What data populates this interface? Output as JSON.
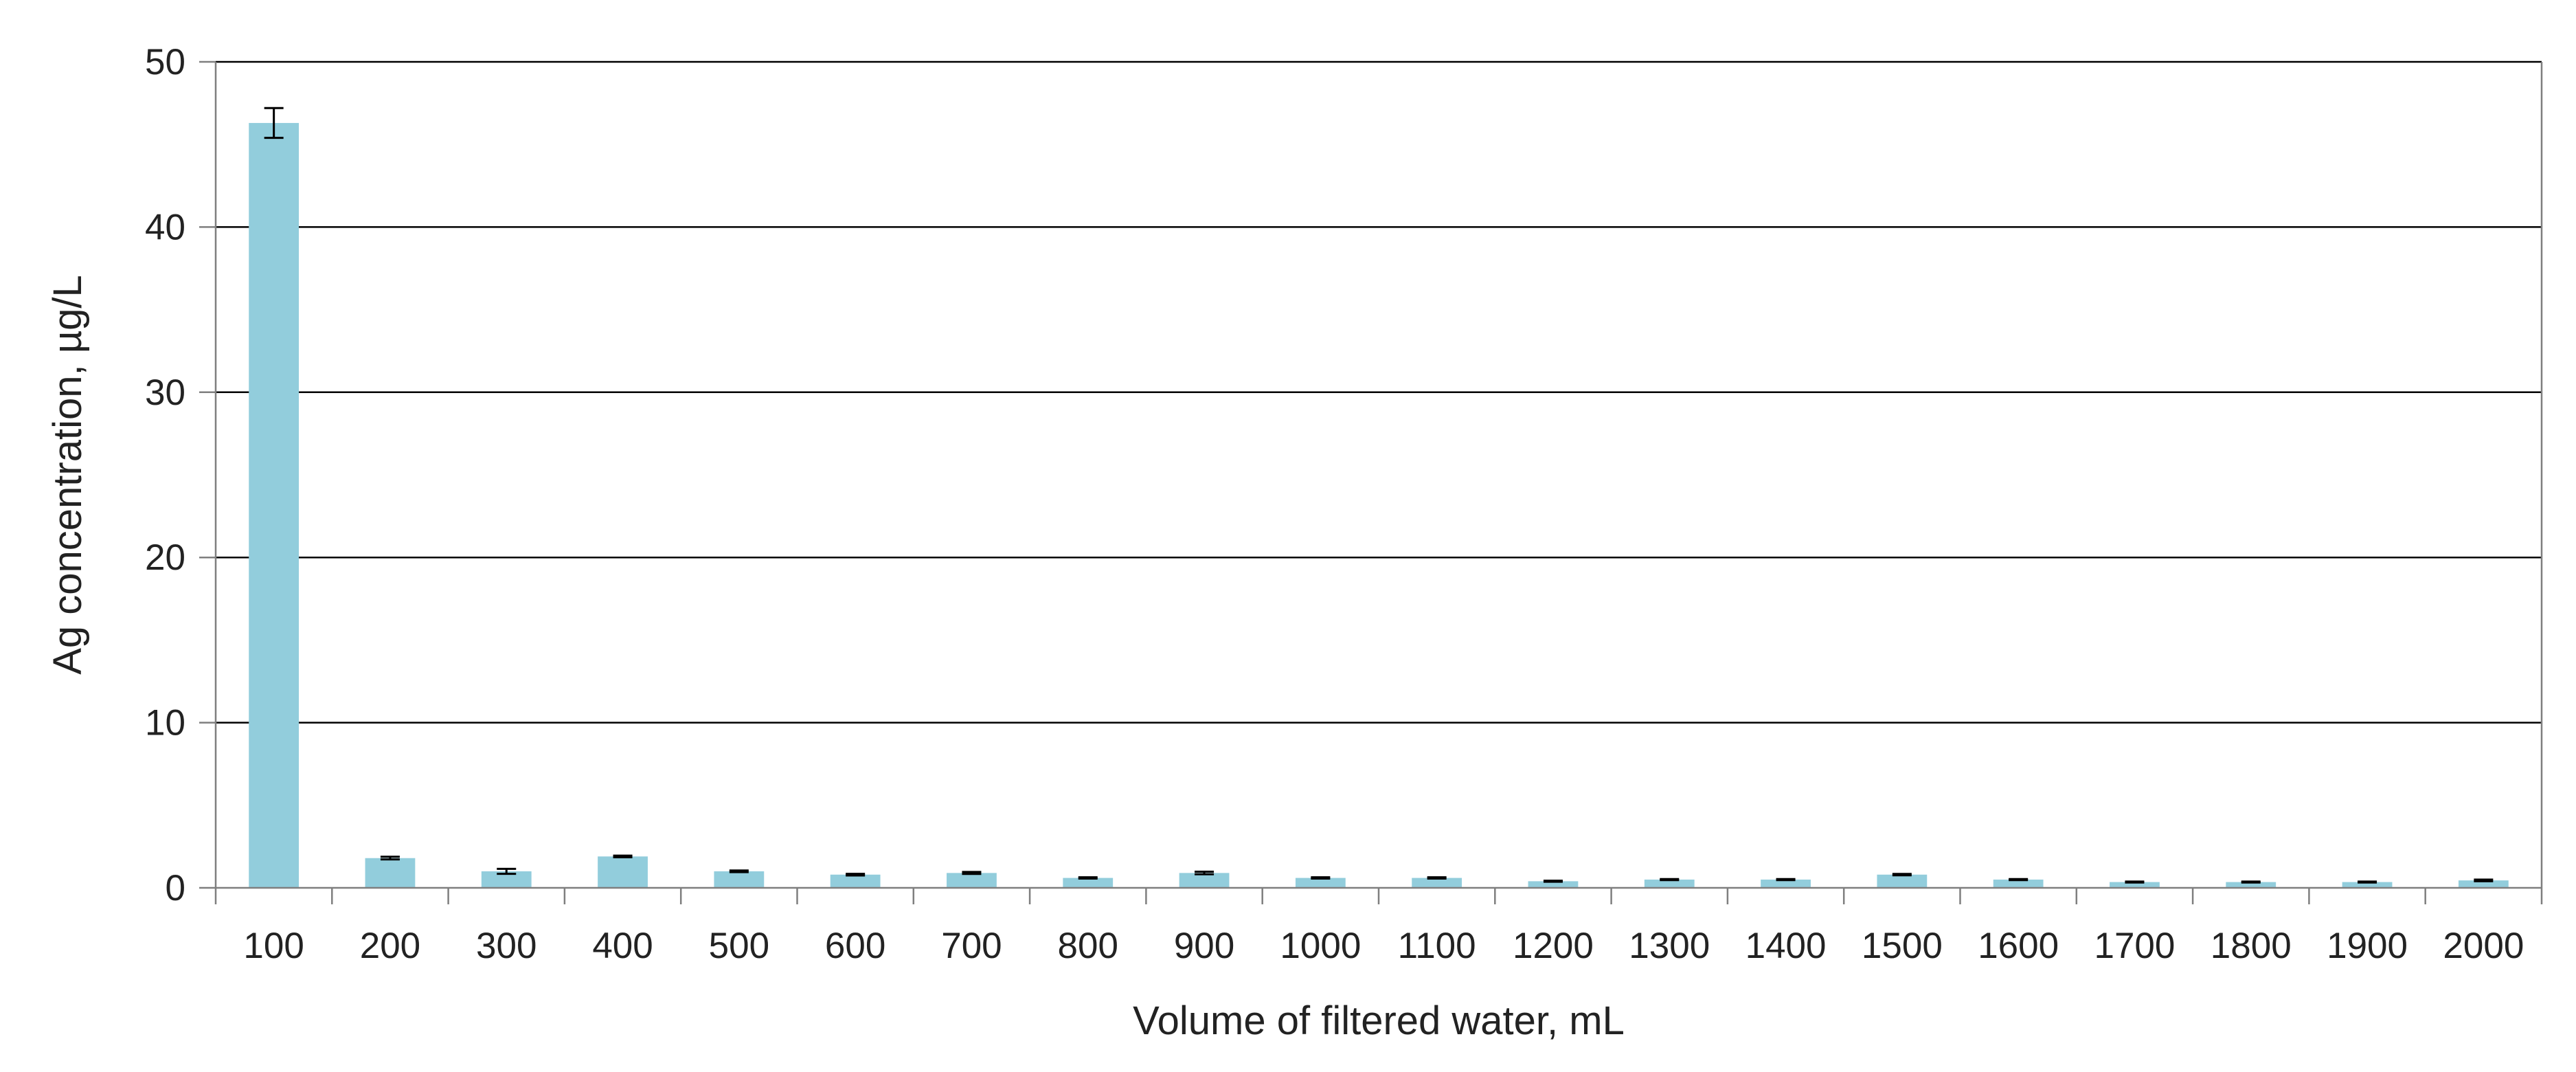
{
  "chart_data": {
    "type": "bar",
    "title": "",
    "xlabel": "Volume of filtered water, mL",
    "ylabel": "Ag concentration, µg/L",
    "categories": [
      "100",
      "200",
      "300",
      "400",
      "500",
      "600",
      "700",
      "800",
      "900",
      "1000",
      "1100",
      "1200",
      "1300",
      "1400",
      "1500",
      "1600",
      "1700",
      "1800",
      "1900",
      "2000"
    ],
    "values": [
      46.3,
      1.8,
      1.0,
      1.9,
      1.0,
      0.8,
      0.9,
      0.6,
      0.9,
      0.6,
      0.6,
      0.4,
      0.5,
      0.5,
      0.8,
      0.5,
      0.35,
      0.35,
      0.35,
      0.45
    ],
    "errors": [
      0.9,
      0.08,
      0.15,
      0.05,
      0.05,
      0.05,
      0.06,
      0.04,
      0.08,
      0.04,
      0.04,
      0.03,
      0.03,
      0.03,
      0.04,
      0.03,
      0.03,
      0.03,
      0.03,
      0.05
    ],
    "ylim": [
      0,
      50
    ],
    "yticks": [
      "0",
      "10",
      "20",
      "30",
      "40",
      "50"
    ],
    "grid": true,
    "legend": "none",
    "colors": {
      "bar": "#92CDDC",
      "grid": "#000000",
      "axis": "#7f7f7f",
      "error_bar": "#000000"
    }
  }
}
